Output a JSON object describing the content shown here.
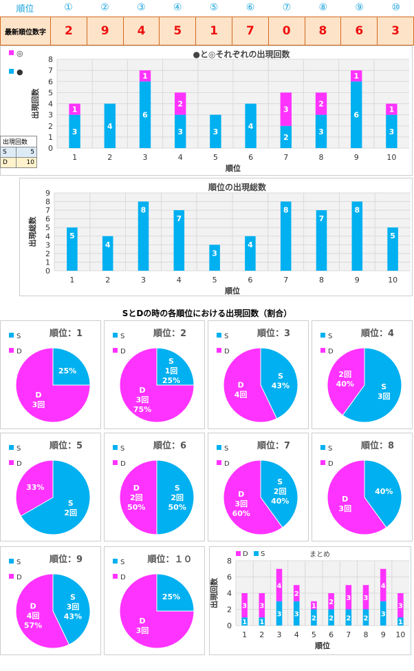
{
  "header": {
    "rank_label": "順位",
    "positions": [
      "①",
      "②",
      "③",
      "④",
      "⑤",
      "⑥",
      "⑦",
      "⑧",
      "⑨",
      "⑩"
    ],
    "latest_label": "最新順位数字",
    "latest_digits": [
      "2",
      "9",
      "4",
      "5",
      "1",
      "7",
      "0",
      "8",
      "6",
      "3"
    ]
  },
  "legend_table": {
    "header": "出現回数",
    "rows": [
      {
        "k": "S",
        "v": "5"
      },
      {
        "k": "D",
        "v": "10"
      }
    ]
  },
  "colors": {
    "circle": "#00b0f0",
    "double": "#ff33ff",
    "grid": "#d9d9d9",
    "bg": "#f2f2f2"
  },
  "section_title": "SとDの時の各順位における出現回数（割合）",
  "chart_data": [
    {
      "type": "bar",
      "title": "●と◎それぞれの出現回数",
      "xlabel": "順位",
      "ylabel": "出現回数",
      "ylim": [
        0,
        8
      ],
      "yticks": [
        "0",
        "1",
        "2",
        "3",
        "4",
        "5",
        "6",
        "7",
        "8"
      ],
      "categories": [
        "1",
        "2",
        "3",
        "4",
        "5",
        "6",
        "7",
        "8",
        "9",
        "10"
      ],
      "series": [
        {
          "name": "●",
          "values": [
            3,
            4,
            6,
            3,
            3,
            4,
            2,
            3,
            6,
            3
          ]
        },
        {
          "name": "◎",
          "values": [
            1,
            0,
            1,
            2,
            0,
            0,
            3,
            2,
            1,
            1
          ]
        }
      ],
      "legend": [
        "◎",
        "●"
      ]
    },
    {
      "type": "bar",
      "title": "順位の出現総数",
      "xlabel": "順位",
      "ylabel": "出現総数",
      "ylim": [
        0,
        9
      ],
      "yticks": [
        "0",
        "1",
        "2",
        "3",
        "4",
        "5",
        "6",
        "7",
        "8",
        "9"
      ],
      "categories": [
        "1",
        "2",
        "3",
        "4",
        "5",
        "6",
        "7",
        "8",
        "9",
        "10"
      ],
      "values": [
        5,
        4,
        8,
        7,
        3,
        4,
        8,
        7,
        8,
        5
      ]
    },
    {
      "type": "pie",
      "pies": [
        {
          "title": "順位：1",
          "S": 1,
          "D": 3,
          "labels": {
            "S": [
              "25%"
            ],
            "D": [
              "D",
              "3回"
            ]
          }
        },
        {
          "title": "順位：2",
          "S": 1,
          "D": 3,
          "labels": {
            "S": [
              "S",
              "1回",
              "25%"
            ],
            "D": [
              "D",
              "3回",
              "75%"
            ]
          }
        },
        {
          "title": "順位：3",
          "S": 3,
          "D": 4,
          "labels": {
            "S": [
              "S",
              "43%"
            ],
            "D": [
              "D",
              "4回"
            ]
          }
        },
        {
          "title": "順位：4",
          "S": 3,
          "D": 2,
          "labels": {
            "S": [
              "S",
              "3回"
            ],
            "D": [
              "2回",
              "40%"
            ]
          }
        },
        {
          "title": "順位：5",
          "S": 2,
          "D": 1,
          "labels": {
            "S": [
              "S",
              "2回"
            ],
            "D": [
              "33%"
            ]
          }
        },
        {
          "title": "順位：6",
          "S": 2,
          "D": 2,
          "labels": {
            "S": [
              "S",
              "2回",
              "50%"
            ],
            "D": [
              "D",
              "2回",
              "50%"
            ]
          }
        },
        {
          "title": "順位：7",
          "S": 2,
          "D": 3,
          "labels": {
            "S": [
              "S",
              "2回",
              "40%"
            ],
            "D": [
              "D",
              "3回",
              "60%"
            ]
          }
        },
        {
          "title": "順位：8",
          "S": 2,
          "D": 3,
          "labels": {
            "S": [
              "40%"
            ],
            "D": [
              "D",
              "3回"
            ]
          }
        },
        {
          "title": "順位：9",
          "S": 3,
          "D": 4,
          "labels": {
            "S": [
              "S",
              "3回",
              "43%"
            ],
            "D": [
              "D",
              "4回",
              "57%"
            ]
          }
        },
        {
          "title": "順位：１０",
          "S": 1,
          "D": 3,
          "labels": {
            "S": [
              "25%"
            ],
            "D": [
              "D",
              "3回"
            ]
          }
        }
      ],
      "legend": [
        "S",
        "D"
      ]
    },
    {
      "type": "bar",
      "title": "まとめ",
      "xlabel": "順位",
      "ylabel": "出現回数",
      "ylim": [
        0,
        8
      ],
      "yticks": [
        "0",
        "2",
        "4",
        "6",
        "8"
      ],
      "categories": [
        "1",
        "2",
        "3",
        "4",
        "5",
        "6",
        "7",
        "8",
        "9",
        "10"
      ],
      "series": [
        {
          "name": "S",
          "values": [
            1,
            1,
            3,
            3,
            2,
            2,
            2,
            2,
            3,
            1
          ]
        },
        {
          "name": "D",
          "values": [
            3,
            3,
            4,
            2,
            1,
            2,
            3,
            3,
            4,
            3
          ]
        }
      ],
      "legend": [
        "D",
        "S"
      ]
    }
  ]
}
